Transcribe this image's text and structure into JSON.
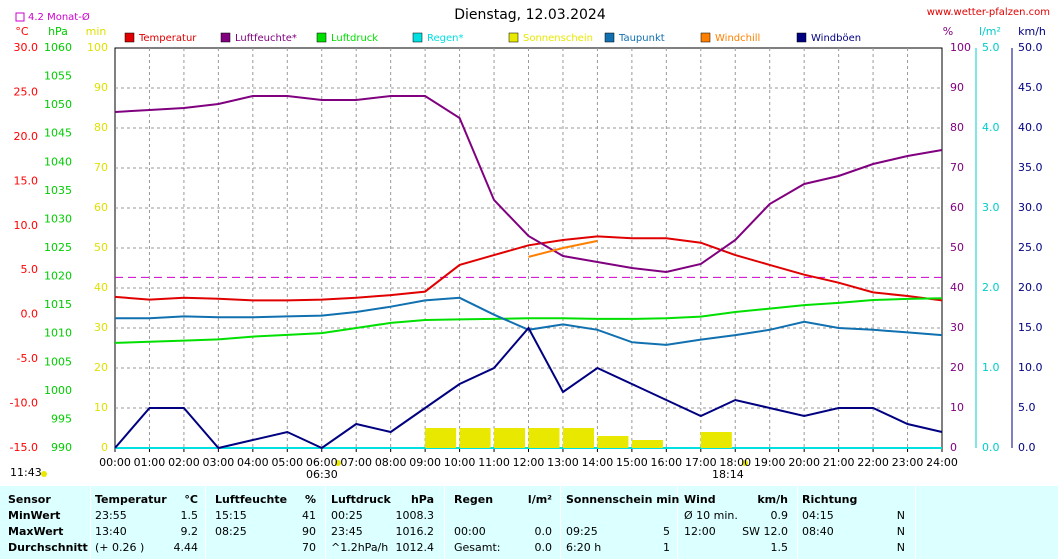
{
  "chart_data": {
    "type": "line",
    "title": "Dienstag, 12.03.2024",
    "source": "www.wetter-pfalzen.com",
    "monthly_avg": {
      "label": "4.2 Monat-Ø",
      "value": 4.2,
      "color": "#cc00cc"
    },
    "day_length": "11:43",
    "sunrise": "06:30",
    "sunset": "18:14",
    "x": [
      "00:00",
      "01:00",
      "02:00",
      "03:00",
      "04:00",
      "05:00",
      "06:00",
      "07:00",
      "08:00",
      "09:00",
      "10:00",
      "11:00",
      "12:00",
      "13:00",
      "14:00",
      "15:00",
      "16:00",
      "17:00",
      "18:00",
      "19:00",
      "20:00",
      "21:00",
      "22:00",
      "23:00",
      "24:00"
    ],
    "axes": {
      "temp": {
        "unit": "°C",
        "color": "#ff0000",
        "lim": [
          -15,
          30
        ],
        "ticks": [
          {
            "value": -15,
            "label": "-15.0"
          },
          {
            "value": -10,
            "label": "-10.0"
          },
          {
            "value": -5,
            "label": "-5.0"
          },
          {
            "value": 0,
            "label": "0.0"
          },
          {
            "value": 5,
            "label": "5.0"
          },
          {
            "value": 10,
            "label": "10.0"
          },
          {
            "value": 15,
            "label": "15.0"
          },
          {
            "value": 20,
            "label": "20.0"
          },
          {
            "value": 25,
            "label": "25.0"
          },
          {
            "value": 30,
            "label": "30.0"
          }
        ]
      },
      "hpa": {
        "unit": "hPa",
        "color": "#00cc00",
        "lim": [
          990,
          1060
        ],
        "ticks": [
          990,
          995,
          1000,
          1005,
          1010,
          1015,
          1020,
          1025,
          1030,
          1035,
          1040,
          1045,
          1050,
          1055,
          1060
        ]
      },
      "min": {
        "unit": "min",
        "color": "#e0e000",
        "lim": [
          0,
          100
        ],
        "ticks": [
          0,
          10,
          20,
          30,
          40,
          50,
          60,
          70,
          80,
          90,
          100
        ]
      },
      "pct": {
        "unit": "%",
        "color": "#800080",
        "lim": [
          0,
          100
        ],
        "ticks": [
          0,
          10,
          20,
          30,
          40,
          50,
          60,
          70,
          80,
          90,
          100
        ]
      },
      "rain": {
        "unit": "l/m²",
        "color": "#00cccc",
        "lim": [
          0,
          5
        ],
        "ticks": [
          {
            "value": 0,
            "label": "0.0"
          },
          {
            "value": 1,
            "label": "1.0"
          },
          {
            "value": 2,
            "label": "2.0"
          },
          {
            "value": 3,
            "label": "3.0"
          },
          {
            "value": 4,
            "label": "4.0"
          },
          {
            "value": 5,
            "label": "5.0"
          }
        ]
      },
      "kmh": {
        "unit": "km/h",
        "color": "#000080",
        "lim": [
          0,
          50
        ],
        "ticks": [
          {
            "value": 0,
            "label": "0.0"
          },
          {
            "value": 5,
            "label": "5.0"
          },
          {
            "value": 10,
            "label": "10.0"
          },
          {
            "value": 15,
            "label": "15.0"
          },
          {
            "value": 20,
            "label": "20.0"
          },
          {
            "value": 25,
            "label": "25.0"
          },
          {
            "value": 30,
            "label": "30.0"
          },
          {
            "value": 35,
            "label": "35.0"
          },
          {
            "value": 40,
            "label": "40.0"
          },
          {
            "value": 45,
            "label": "45.0"
          },
          {
            "value": 50,
            "label": "50.0"
          }
        ]
      }
    },
    "grid": true,
    "series": [
      {
        "name": "Temperatur",
        "color": "#e00000",
        "axis": "temp",
        "values": [
          2.0,
          1.7,
          1.9,
          1.8,
          1.6,
          1.6,
          1.7,
          1.9,
          2.2,
          2.6,
          5.6,
          6.7,
          7.8,
          8.4,
          8.8,
          8.6,
          8.6,
          8.1,
          6.7,
          5.6,
          4.5,
          3.6,
          2.5,
          2.1,
          1.6
        ]
      },
      {
        "name": "Luftfeuchte*",
        "color": "#800080",
        "axis": "pct",
        "values": [
          84,
          84.5,
          85,
          86,
          88,
          88,
          87,
          87,
          88,
          88,
          82.5,
          62,
          53,
          48,
          46.5,
          45,
          44,
          46,
          52,
          61,
          66,
          68,
          71,
          73,
          74.5
        ]
      },
      {
        "name": "Luftdruck",
        "color": "#00e000",
        "axis": "hpa",
        "values": [
          1008.4,
          1008.6,
          1008.8,
          1009.0,
          1009.5,
          1009.8,
          1010.1,
          1011.0,
          1011.9,
          1012.4,
          1012.5,
          1012.6,
          1012.7,
          1012.7,
          1012.6,
          1012.6,
          1012.7,
          1013.0,
          1013.8,
          1014.4,
          1015.0,
          1015.4,
          1015.9,
          1016.1,
          1016.2
        ]
      },
      {
        "name": "Regen*",
        "color": "#00e0e0",
        "axis": "rain",
        "values": [
          0,
          0,
          0,
          0,
          0,
          0,
          0,
          0,
          0,
          0,
          0,
          0,
          0,
          0,
          0,
          0,
          0,
          0,
          0,
          0,
          0,
          0,
          0,
          0,
          0
        ]
      },
      {
        "name": "Sonnenschein",
        "color": "#e8e800",
        "axis": "min",
        "kind": "bar",
        "values": [
          0,
          0,
          0,
          0,
          0,
          0,
          0,
          0,
          0,
          5,
          5,
          5,
          5,
          5,
          3,
          2,
          0,
          4,
          0,
          0,
          0,
          0,
          0,
          0,
          null
        ]
      },
      {
        "name": "Taupunkt",
        "color": "#1070b0",
        "axis": "temp",
        "values": [
          -0.4,
          -0.4,
          -0.2,
          -0.3,
          -0.3,
          -0.2,
          -0.1,
          0.3,
          0.9,
          1.6,
          1.9,
          0.0,
          -1.7,
          -1.1,
          -1.7,
          -3.1,
          -3.4,
          -2.8,
          -2.3,
          -1.7,
          -0.8,
          -1.5,
          -1.7,
          -2.0,
          -2.3
        ]
      },
      {
        "name": "Windchill",
        "color": "#ff8000",
        "axis": "temp",
        "values": [
          null,
          null,
          null,
          null,
          null,
          null,
          null,
          null,
          null,
          null,
          null,
          null,
          6.5,
          7.5,
          8.3,
          null,
          null,
          null,
          null,
          null,
          null,
          null,
          null,
          null,
          null
        ]
      },
      {
        "name": "Windböen",
        "color": "#000080",
        "axis": "kmh",
        "values": [
          0,
          5,
          5,
          0,
          1,
          2,
          0,
          3,
          2,
          5,
          8,
          10,
          15,
          7,
          10,
          8,
          6,
          4,
          6,
          5,
          4,
          5,
          5,
          3,
          2
        ]
      }
    ]
  },
  "table": {
    "header": [
      "Sensor",
      "Temperatur",
      "°C",
      "Luftfeuchte",
      "%",
      "Luftdruck",
      "hPa",
      "Regen",
      "l/m²",
      "Sonnenschein min",
      null,
      "Wind",
      "km/h",
      "Richtung",
      null
    ],
    "rows": [
      [
        "MinWert",
        "23:55",
        "1.5",
        "15:15",
        "41",
        "00:25",
        "1008.3",
        null,
        null,
        null,
        null,
        "Ø 10 min.",
        "0.9",
        "04:15",
        "N"
      ],
      [
        "MaxWert",
        "13:40",
        "9.2",
        "08:25",
        "90",
        "23:45",
        "1016.2",
        "00:00",
        "0.0",
        "09:25",
        "5",
        "12:00",
        "SW 12.0",
        "08:40",
        "N"
      ],
      [
        "Durchschnitt",
        "(+ 0.26 )",
        "4.44",
        null,
        "70",
        "^1.2hPa/h",
        "1012.4",
        "Gesamt:",
        "0.0",
        "6:20 h",
        "1",
        null,
        "1.5",
        null,
        "N"
      ]
    ]
  }
}
